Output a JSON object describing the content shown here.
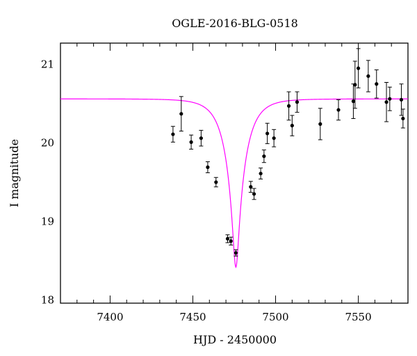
{
  "chart_data": {
    "type": "scatter",
    "title": "OGLE-2016-BLG-0518",
    "xlabel": "HJD - 2450000",
    "ylabel": "I magnitude",
    "xlim": [
      7370,
      7580
    ],
    "ylim": [
      21.27,
      17.96
    ],
    "y_inverted": true,
    "xticks": [
      7400,
      7450,
      7500,
      7550
    ],
    "yticks": [
      18,
      19,
      20,
      21
    ],
    "grid": false,
    "colors": {
      "points": "#000000",
      "model": "#ff00ff"
    },
    "series": [
      {
        "x": [
          7438,
          7443,
          7449,
          7455,
          7459,
          7464,
          7471,
          7473,
          7476,
          7485,
          7487,
          7491,
          7493,
          7495,
          7499,
          7508,
          7510,
          7513,
          7527,
          7538,
          7547,
          7548,
          7550,
          7556,
          7561,
          7567,
          7569,
          7576,
          7577
        ],
        "y": [
          20.11,
          20.37,
          20.01,
          20.06,
          19.69,
          19.5,
          18.78,
          18.75,
          18.6,
          19.44,
          19.35,
          19.61,
          19.83,
          20.12,
          20.06,
          20.47,
          20.22,
          20.52,
          20.24,
          20.42,
          20.53,
          20.74,
          20.95,
          20.85,
          20.75,
          20.52,
          20.56,
          20.55,
          20.31
        ],
        "yerr": [
          0.1,
          0.22,
          0.09,
          0.1,
          0.07,
          0.06,
          0.05,
          0.05,
          0.04,
          0.07,
          0.07,
          0.07,
          0.08,
          0.13,
          0.11,
          0.18,
          0.13,
          0.13,
          0.2,
          0.13,
          0.22,
          0.3,
          0.25,
          0.2,
          0.18,
          0.25,
          0.15,
          0.2,
          0.12
        ]
      }
    ],
    "model": {
      "t0": 7476,
      "u0": 0.14,
      "tE": 11.5,
      "baseline": 20.56
    }
  }
}
